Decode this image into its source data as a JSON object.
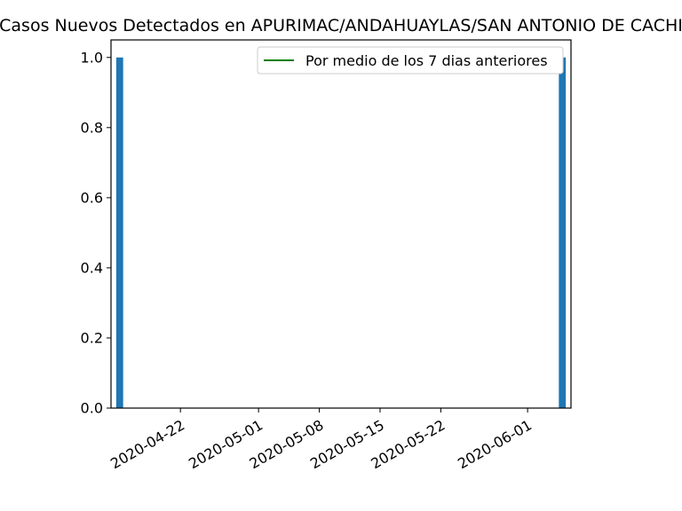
{
  "chart_data": {
    "type": "bar",
    "title": "Casos Nuevos Detectados en APURIMAC/ANDAHUAYLAS/SAN ANTONIO DE CACHI",
    "xlabel": "",
    "ylabel": "",
    "x_axis_type": "date",
    "xlim": [
      "2020-04-14",
      "2020-06-06"
    ],
    "ylim": [
      0,
      1.05
    ],
    "x_ticks": [
      "2020-04-22",
      "2020-05-01",
      "2020-05-08",
      "2020-05-15",
      "2020-05-22",
      "2020-06-01"
    ],
    "y_ticks": [
      "0.0",
      "0.2",
      "0.4",
      "0.6",
      "0.8",
      "1.0"
    ],
    "grid": false,
    "legend_position": "top-right",
    "bar_color": "#1f77b4",
    "line_color": "#008000",
    "series": [
      {
        "kind": "bar",
        "points": [
          {
            "date": "2020-04-15",
            "value": 1
          },
          {
            "date": "2020-06-05",
            "value": 1
          }
        ]
      },
      {
        "name": "Por medio de los 7 dias anteriores",
        "kind": "line",
        "points": []
      }
    ]
  }
}
